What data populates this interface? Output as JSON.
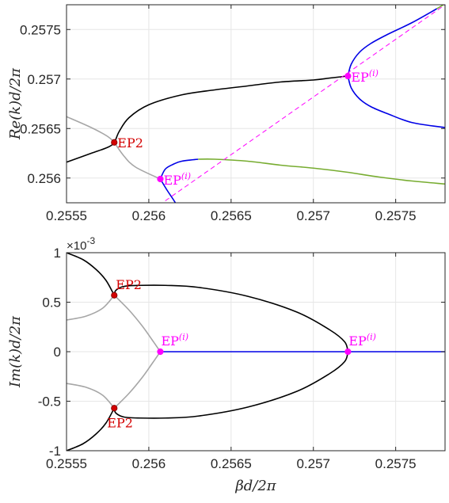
{
  "colors": {
    "black": "#000000",
    "gray": "#a6a6a6",
    "blue": "#0000e6",
    "green": "#77ac30",
    "magenta": "#ff00ff",
    "red": "#d40000",
    "dark_red": "#8b0000",
    "grid": "#e6e6e6",
    "axis": "#262626"
  },
  "chart_data": [
    {
      "type": "line",
      "panel": "top",
      "ylabel": "Re(k)d/2π",
      "xlim": [
        0.2555,
        0.2578
      ],
      "ylim": [
        0.25575,
        0.25775
      ],
      "xticks": [
        0.2555,
        0.256,
        0.2565,
        0.257,
        0.2575
      ],
      "xtick_labels": [
        "0.2555",
        "0.256",
        "0.2565",
        "0.257",
        "0.2575"
      ],
      "yticks": [
        0.256,
        0.2565,
        0.257,
        0.2575
      ],
      "ytick_labels": [
        "0.256",
        "0.2565",
        "0.257",
        "0.2575"
      ],
      "grid": true,
      "series": [
        {
          "color": "black",
          "x": [
            0.2555,
            0.25565,
            0.25575,
            0.25579,
            0.25582,
            0.25588,
            0.256,
            0.2562,
            0.2564,
            0.2566,
            0.2568,
            0.257,
            0.2571,
            0.25721
          ],
          "y": [
            0.25616,
            0.25625,
            0.25631,
            0.25636,
            0.25647,
            0.25661,
            0.25674,
            0.25684,
            0.25689,
            0.25693,
            0.25697,
            0.25699,
            0.25701,
            0.25703
          ]
        },
        {
          "color": "gray",
          "x": [
            0.2555,
            0.25565,
            0.25575,
            0.25579
          ],
          "y": [
            0.25662,
            0.25651,
            0.25642,
            0.25636
          ]
        },
        {
          "color": "gray",
          "x": [
            0.25579,
            0.25585,
            0.25592,
            0.25607
          ],
          "y": [
            0.25636,
            0.25622,
            0.25611,
            0.25599
          ]
        },
        {
          "color": "blue",
          "x": [
            0.25607,
            0.2561,
            0.25615,
            0.2562,
            0.2563
          ],
          "y": [
            0.25599,
            0.25609,
            0.25614,
            0.25617,
            0.25619
          ]
        },
        {
          "color": "blue",
          "x": [
            0.25607,
            0.25611,
            0.25615,
            0.25618
          ],
          "y": [
            0.25599,
            0.25588,
            0.25578,
            0.2557
          ]
        },
        {
          "color": "green",
          "x": [
            0.2563,
            0.2564,
            0.2566,
            0.2568,
            0.257,
            0.2572,
            0.2574,
            0.2576,
            0.2578
          ],
          "y": [
            0.25619,
            0.25619,
            0.25617,
            0.25613,
            0.2561,
            0.25606,
            0.25601,
            0.25597,
            0.25594
          ]
        },
        {
          "color": "blue",
          "x": [
            0.25721,
            0.25723,
            0.25728,
            0.25735,
            0.25745,
            0.2576,
            0.25775
          ],
          "y": [
            0.25703,
            0.25715,
            0.25727,
            0.25736,
            0.25745,
            0.25757,
            0.25771
          ]
        },
        {
          "color": "green",
          "x": [
            0.25775,
            0.2578
          ],
          "y": [
            0.25771,
            0.25776
          ]
        },
        {
          "color": "blue",
          "x": [
            0.25721,
            0.25723,
            0.25728,
            0.25735,
            0.25745,
            0.2576,
            0.2578
          ],
          "y": [
            0.25703,
            0.25691,
            0.2568,
            0.25672,
            0.25665,
            0.25656,
            0.25651
          ]
        },
        {
          "color": "magenta",
          "dash": true,
          "x": [
            0.2561,
            0.2578
          ],
          "y": [
            0.25577,
            0.25775
          ]
        }
      ],
      "points": [
        {
          "x": 0.25579,
          "y": 0.25636,
          "color": "red",
          "label": "EP2",
          "label_color": "red"
        },
        {
          "x": 0.25607,
          "y": 0.25599,
          "color": "magenta",
          "label": "EP",
          "sup": "(i)",
          "label_color": "magenta"
        },
        {
          "x": 0.25721,
          "y": 0.25703,
          "color": "magenta",
          "label": "EP",
          "sup": "(i)",
          "label_color": "magenta"
        }
      ]
    },
    {
      "type": "line",
      "panel": "bottom",
      "ylabel": "Im(k)d/2π",
      "xlabel": "βd/2π",
      "xlim": [
        0.2555,
        0.2578
      ],
      "ylim": [
        -1,
        1
      ],
      "y_exponent": "×10",
      "y_exponent_power": "-3",
      "xticks": [
        0.2555,
        0.256,
        0.2565,
        0.257,
        0.2575
      ],
      "xtick_labels": [
        "0.2555",
        "0.256",
        "0.2565",
        "0.257",
        "0.2575"
      ],
      "yticks": [
        -1,
        -0.5,
        0,
        0.5,
        1
      ],
      "ytick_labels": [
        "-1",
        "-0.5",
        "0",
        "0.5",
        "1"
      ],
      "grid": true,
      "series": [
        {
          "color": "black",
          "x": [
            0.2555,
            0.2556,
            0.25568,
            0.25574,
            0.25579
          ],
          "y": [
            1.0,
            0.93,
            0.83,
            0.72,
            0.57
          ]
        },
        {
          "color": "black",
          "x": [
            0.25579,
            0.2558,
            0.25585,
            0.25595,
            0.2561,
            0.2563,
            0.2566,
            0.2569,
            0.2571,
            0.25719,
            0.25721
          ],
          "y": [
            0.57,
            0.62,
            0.66,
            0.67,
            0.67,
            0.65,
            0.56,
            0.4,
            0.22,
            0.1,
            0.0
          ]
        },
        {
          "color": "black",
          "x": [
            0.25579,
            0.2558,
            0.25585,
            0.25595,
            0.2561,
            0.2563,
            0.2566,
            0.2569,
            0.2571,
            0.25719,
            0.25721
          ],
          "y": [
            -0.57,
            -0.62,
            -0.66,
            -0.67,
            -0.67,
            -0.65,
            -0.56,
            -0.4,
            -0.22,
            -0.1,
            0.0
          ]
        },
        {
          "color": "black",
          "x": [
            0.25579,
            0.25574,
            0.25568,
            0.2556,
            0.2555
          ],
          "y": [
            -0.57,
            -0.72,
            -0.83,
            -0.93,
            -1.0
          ]
        },
        {
          "color": "gray",
          "x": [
            0.2555,
            0.25562,
            0.25572,
            0.25579
          ],
          "y": [
            0.32,
            0.36,
            0.44,
            0.57
          ]
        },
        {
          "color": "gray",
          "x": [
            0.25579,
            0.25588,
            0.25596,
            0.25602,
            0.25607
          ],
          "y": [
            0.57,
            0.42,
            0.26,
            0.12,
            0.0
          ]
        },
        {
          "color": "gray",
          "x": [
            0.25607,
            0.25602,
            0.25596,
            0.25588,
            0.25579
          ],
          "y": [
            0.0,
            -0.12,
            -0.26,
            -0.42,
            -0.57
          ]
        },
        {
          "color": "gray",
          "x": [
            0.25579,
            0.25572,
            0.25562,
            0.2555
          ],
          "y": [
            -0.57,
            -0.44,
            -0.36,
            -0.32
          ]
        },
        {
          "color": "blue",
          "x": [
            0.25607,
            0.2578
          ],
          "y": [
            0.0,
            0.0
          ]
        }
      ],
      "points": [
        {
          "x": 0.25579,
          "y": 0.57,
          "color": "red",
          "label": "EP2",
          "label_color": "red",
          "pos": "above"
        },
        {
          "x": 0.25579,
          "y": -0.57,
          "color": "red",
          "label": "EP2",
          "label_color": "red",
          "pos": "below"
        },
        {
          "x": 0.25607,
          "y": 0.0,
          "color": "magenta",
          "label": "EP",
          "sup": "(i)",
          "label_color": "magenta",
          "pos": "above"
        },
        {
          "x": 0.25721,
          "y": 0.0,
          "color": "magenta",
          "label": "EP",
          "sup": "(i)",
          "label_color": "magenta",
          "pos": "above"
        }
      ]
    }
  ]
}
